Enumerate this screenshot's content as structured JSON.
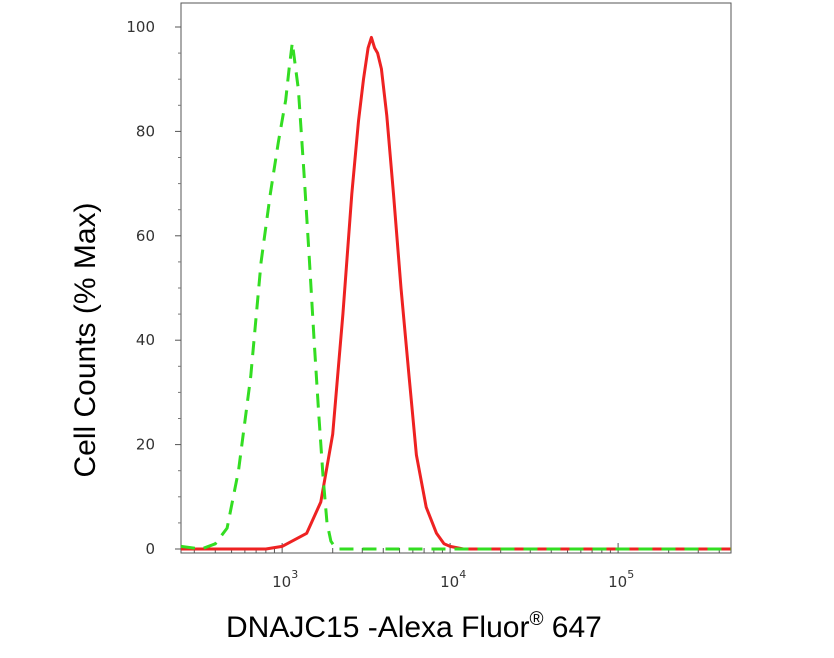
{
  "chart_data": {
    "type": "line",
    "xlabel": "DNAJC15 -Alexa Fluor",
    "xlabel_mark": "®",
    "xlabel_suffix": " 647",
    "ylabel": "Cell Counts (% Max)",
    "x_scale": "log",
    "xlim": [
      250,
      470000
    ],
    "ylim": [
      0,
      100
    ],
    "y_ticks": [
      "0",
      "20",
      "40",
      "60",
      "80",
      "100"
    ],
    "x_tick_base": "10",
    "x_ticks": [
      {
        "value": 1000,
        "exp": "3"
      },
      {
        "value": 10000,
        "exp": "4"
      },
      {
        "value": 100000,
        "exp": "5"
      }
    ],
    "grid": false,
    "series": [
      {
        "color": "#ee2222",
        "style": "solid",
        "x": [
          250,
          800,
          1000,
          1400,
          1700,
          2000,
          2300,
          2600,
          2850,
          3050,
          3250,
          3400,
          3550,
          3700,
          3900,
          4200,
          4600,
          5100,
          5700,
          6300,
          7200,
          8300,
          9200,
          10000,
          12000,
          20000,
          100000,
          470000
        ],
        "y": [
          0,
          0,
          0.5,
          3,
          9,
          22,
          45,
          68,
          82,
          90,
          96,
          98,
          96,
          95,
          92,
          83,
          68,
          50,
          33,
          18,
          8,
          3,
          1,
          0.5,
          0,
          0,
          0,
          0
        ]
      },
      {
        "color": "#33dd22",
        "style": "dashed",
        "x": [
          250,
          330,
          400,
          470,
          550,
          650,
          750,
          850,
          950,
          1050,
          1100,
          1150,
          1250,
          1350,
          1450,
          1550,
          1650,
          1750,
          1850,
          1950,
          2100,
          2400,
          10000,
          100000,
          470000
        ],
        "y": [
          0.5,
          0,
          1,
          4,
          15,
          33,
          55,
          68,
          78,
          86,
          92,
          97,
          88,
          72,
          56,
          40,
          26,
          14,
          5,
          1.5,
          0,
          0,
          0,
          0,
          0
        ]
      }
    ]
  }
}
